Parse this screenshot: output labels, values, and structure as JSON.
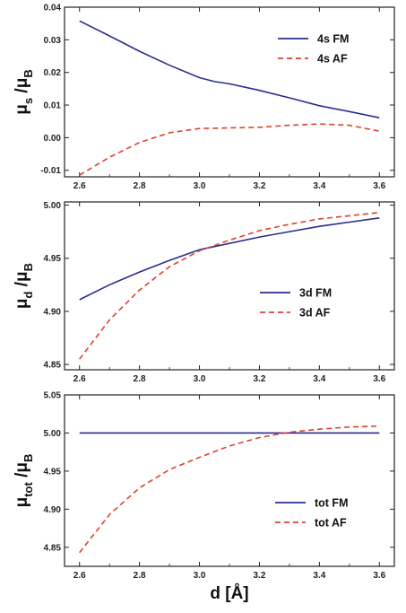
{
  "chart_data": [
    {
      "type": "line",
      "ylabel_main": "μ",
      "ylabel_sub": "s",
      "ylabel_den_main": "μ",
      "ylabel_den_sub": "B",
      "xlim": [
        2.55,
        3.65
      ],
      "ylim": [
        -0.012,
        0.04
      ],
      "xticks": [
        "2.6",
        "2.8",
        "3.0",
        "3.2",
        "3.4",
        "3.6"
      ],
      "yticks": [
        "-0.01",
        "0.00",
        "0.01",
        "0.02",
        "0.03",
        "0.04"
      ],
      "legend_position": "top-right",
      "series": [
        {
          "name": "4s  FM",
          "color": "#2b2d8c",
          "dash": false,
          "x": [
            2.6,
            2.7,
            2.8,
            2.9,
            3.0,
            3.05,
            3.1,
            3.2,
            3.3,
            3.4,
            3.5,
            3.6
          ],
          "y": [
            0.0358,
            0.0312,
            0.0265,
            0.0222,
            0.0184,
            0.0172,
            0.0165,
            0.0145,
            0.0122,
            0.0098,
            0.008,
            0.0061
          ]
        },
        {
          "name": "4s  AF",
          "color": "#d9432f",
          "dash": true,
          "x": [
            2.6,
            2.7,
            2.8,
            2.9,
            3.0,
            3.1,
            3.2,
            3.3,
            3.4,
            3.5,
            3.6
          ],
          "y": [
            -0.0115,
            -0.006,
            -0.0015,
            0.0015,
            0.0028,
            0.003,
            0.0032,
            0.0038,
            0.0042,
            0.0038,
            0.002
          ]
        }
      ]
    },
    {
      "type": "line",
      "ylabel_main": "μ",
      "ylabel_sub": "d",
      "ylabel_den_main": "μ",
      "ylabel_den_sub": "B",
      "xlim": [
        2.55,
        3.65
      ],
      "ylim": [
        4.845,
        5.003
      ],
      "xticks": [
        "2.6",
        "2.8",
        "3.0",
        "3.2",
        "3.4",
        "3.6"
      ],
      "yticks": [
        "4.85",
        "4.90",
        "4.95",
        "5.00"
      ],
      "legend_position": "center-right",
      "series": [
        {
          "name": "3d  FM",
          "color": "#2b2d8c",
          "dash": false,
          "x": [
            2.6,
            2.7,
            2.8,
            2.9,
            3.0,
            3.05,
            3.1,
            3.2,
            3.3,
            3.4,
            3.5,
            3.6
          ],
          "y": [
            4.911,
            4.925,
            4.937,
            4.948,
            4.958,
            4.961,
            4.964,
            4.97,
            4.975,
            4.98,
            4.984,
            4.988
          ]
        },
        {
          "name": "3d  AF",
          "color": "#d9432f",
          "dash": true,
          "x": [
            2.6,
            2.7,
            2.8,
            2.9,
            3.0,
            3.1,
            3.2,
            3.3,
            3.4,
            3.5,
            3.6
          ],
          "y": [
            4.855,
            4.892,
            4.92,
            4.942,
            4.957,
            4.967,
            4.976,
            4.982,
            4.987,
            4.99,
            4.993
          ]
        }
      ]
    },
    {
      "type": "line",
      "ylabel_main": "μ",
      "ylabel_sub": "tot",
      "ylabel_den_main": "μ",
      "ylabel_den_sub": "B",
      "xlabel": "d  [Å]",
      "xlim": [
        2.55,
        3.65
      ],
      "ylim": [
        4.825,
        5.05
      ],
      "xticks": [
        "2.6",
        "2.8",
        "3.0",
        "3.2",
        "3.4",
        "3.6"
      ],
      "yticks": [
        "4.85",
        "4.90",
        "4.95",
        "5.00",
        "5.05"
      ],
      "legend_position": "bottom-right",
      "series": [
        {
          "name": "tot  FM",
          "color": "#2b2d8c",
          "dash": false,
          "x": [
            2.6,
            3.6
          ],
          "y": [
            5.0,
            5.0
          ]
        },
        {
          "name": "tot  AF",
          "color": "#d9432f",
          "dash": true,
          "x": [
            2.6,
            2.7,
            2.8,
            2.9,
            3.0,
            3.1,
            3.2,
            3.3,
            3.4,
            3.5,
            3.6
          ],
          "y": [
            4.843,
            4.893,
            4.928,
            4.952,
            4.968,
            4.983,
            4.994,
            5.001,
            5.005,
            5.008,
            5.009
          ]
        }
      ]
    }
  ]
}
